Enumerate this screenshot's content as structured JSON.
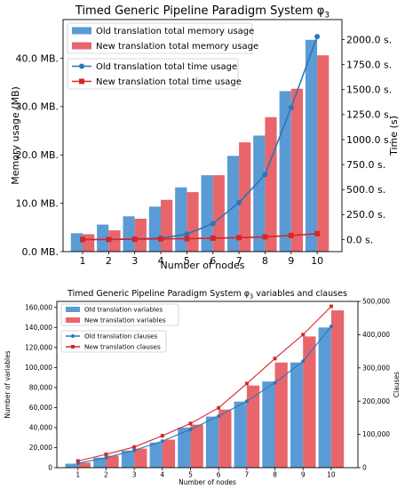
{
  "chart_data": [
    {
      "type": "bar",
      "title": "Timed Generic Pipeline Paradigm System φ",
      "title_sub": "3",
      "xlabel": "Number of nodes",
      "ylabel": "Memory usage (MB)",
      "y2label": "Time (s)",
      "categories": [
        "1",
        "2",
        "3",
        "4",
        "5",
        "6",
        "7",
        "8",
        "9",
        "10"
      ],
      "ylim": [
        0,
        48
      ],
      "y2lim": [
        -120,
        2200
      ],
      "yticks": [
        0,
        10,
        20,
        30,
        40
      ],
      "ytick_labels": [
        "0.0 MB.",
        "10.0 MB.",
        "20.0 MB.",
        "30.0 MB.",
        "40.0 MB."
      ],
      "y2ticks": [
        0,
        250,
        500,
        750,
        1000,
        1250,
        1500,
        1750,
        2000
      ],
      "y2tick_labels": [
        "0.0 s.",
        "250.0 s.",
        "500.0 s.",
        "750.0 s.",
        "1000.0 s.",
        "1250.0 s.",
        "1500.0 s.",
        "1750.0 s.",
        "2000.0 s."
      ],
      "series": [
        {
          "name": "Old translation total memory usage",
          "kind": "bar",
          "axis": "left",
          "color": "#5b9bd5",
          "values": [
            3.8,
            5.6,
            7.3,
            9.3,
            13.3,
            15.8,
            19.8,
            24.0,
            33.2,
            43.8
          ]
        },
        {
          "name": "New translation total memory usage",
          "kind": "bar",
          "axis": "left",
          "color": "#e8666b",
          "values": [
            3.6,
            4.4,
            6.8,
            10.7,
            12.3,
            15.8,
            22.6,
            27.8,
            33.7,
            40.6
          ]
        },
        {
          "name": "Old translation total time usage",
          "kind": "line",
          "axis": "right",
          "color": "#2a76b8",
          "marker": "circle",
          "values": [
            1,
            3,
            7,
            15,
            55,
            160,
            370,
            650,
            1320,
            2030
          ]
        },
        {
          "name": "New translation total time usage",
          "kind": "line",
          "axis": "right",
          "color": "#d62728",
          "marker": "square",
          "values": [
            1,
            2,
            4,
            7,
            10,
            14,
            20,
            28,
            42,
            60
          ]
        }
      ],
      "legend": "top-left"
    },
    {
      "type": "bar",
      "title": "Timed Generic Pipeline Paradigm System φ",
      "title_sub": "3",
      "title_suffix": " variables and clauses",
      "xlabel": "Number of nodes",
      "ylabel": "Number of variables",
      "y2label": "Clauses",
      "categories": [
        "1",
        "2",
        "3",
        "4",
        "5",
        "6",
        "7",
        "8",
        "9",
        "10"
      ],
      "ylim": [
        0,
        166000
      ],
      "y2lim": [
        0,
        500000
      ],
      "yticks": [
        0,
        20000,
        40000,
        60000,
        80000,
        100000,
        120000,
        140000,
        160000
      ],
      "ytick_labels": [
        "0",
        "20,000",
        "40,000",
        "60,000",
        "80,000",
        "100,000",
        "120,000",
        "140,000",
        "160,000"
      ],
      "y2ticks": [
        0,
        100000,
        200000,
        300000,
        400000,
        500000
      ],
      "y2tick_labels": [
        "0",
        "100,000",
        "200,000",
        "300,000",
        "400,000",
        "500,000"
      ],
      "series": [
        {
          "name": "Old translation variables",
          "kind": "bar",
          "axis": "left",
          "color": "#5b9bd5",
          "values": [
            4000,
            10000,
            17000,
            25000,
            40000,
            51000,
            66000,
            86000,
            105000,
            140000
          ]
        },
        {
          "name": "New translation variables",
          "kind": "bar",
          "axis": "left",
          "color": "#e8666b",
          "values": [
            5000,
            12000,
            19000,
            28000,
            43000,
            58000,
            82000,
            105000,
            131000,
            157000
          ]
        },
        {
          "name": "Old translation clauses",
          "kind": "line",
          "axis": "right",
          "color": "#2a76b8",
          "marker": "circle",
          "values": [
            13000,
            30000,
            52000,
            80000,
            115000,
            155000,
            200000,
            255000,
            320000,
            425000
          ]
        },
        {
          "name": "New translation clauses",
          "kind": "line",
          "axis": "right",
          "color": "#d62728",
          "marker": "square",
          "values": [
            20000,
            40000,
            62000,
            96000,
            133000,
            180000,
            253000,
            328000,
            400000,
            485000
          ]
        }
      ],
      "legend": "top-left"
    }
  ]
}
